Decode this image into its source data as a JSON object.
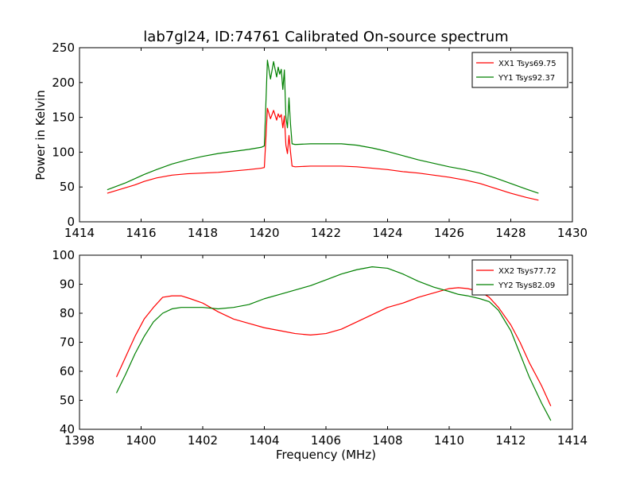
{
  "figure": {
    "title": "lab7gl24, ID:74761 Calibrated On-source spectrum"
  },
  "chart_data": [
    {
      "type": "line",
      "title": "lab7gl24, ID:74761 Calibrated On-source spectrum",
      "xlabel": "",
      "ylabel": "Power in Kelvin",
      "xlim": [
        1414,
        1430
      ],
      "ylim": [
        0,
        250
      ],
      "xticks": [
        1414,
        1416,
        1418,
        1420,
        1422,
        1424,
        1426,
        1428,
        1430
      ],
      "yticks": [
        0,
        50,
        100,
        150,
        200,
        250
      ],
      "grid": false,
      "legend_position": "top-right",
      "series": [
        {
          "name": "XX1 Tsys69.75",
          "color": "#ff0000",
          "x": [
            1414.9,
            1415.2,
            1415.5,
            1415.8,
            1416.1,
            1416.5,
            1417.0,
            1417.5,
            1418.0,
            1418.5,
            1419.0,
            1419.5,
            1419.9,
            1420.0,
            1420.05,
            1420.1,
            1420.2,
            1420.3,
            1420.4,
            1420.45,
            1420.5,
            1420.55,
            1420.6,
            1420.65,
            1420.7,
            1420.75,
            1420.8,
            1420.85,
            1420.9,
            1421.0,
            1421.5,
            1422.0,
            1422.5,
            1423.0,
            1423.5,
            1424.0,
            1424.5,
            1425.0,
            1425.5,
            1426.0,
            1426.5,
            1427.0,
            1427.5,
            1428.0,
            1428.5,
            1428.9
          ],
          "y": [
            41,
            45,
            49,
            53,
            58,
            63,
            67,
            69,
            70,
            71,
            73,
            75,
            77,
            78,
            120,
            163,
            148,
            160,
            146,
            155,
            150,
            154,
            135,
            152,
            110,
            98,
            124,
            100,
            80,
            79,
            80,
            80,
            80,
            79,
            77,
            75,
            72,
            70,
            67,
            64,
            60,
            55,
            48,
            41,
            35,
            31
          ]
        },
        {
          "name": "YY1 Tsys92.37",
          "color": "#008000",
          "x": [
            1414.9,
            1415.2,
            1415.5,
            1415.8,
            1416.1,
            1416.5,
            1417.0,
            1417.5,
            1418.0,
            1418.5,
            1419.0,
            1419.5,
            1419.9,
            1420.0,
            1420.05,
            1420.1,
            1420.2,
            1420.3,
            1420.4,
            1420.45,
            1420.5,
            1420.55,
            1420.6,
            1420.65,
            1420.7,
            1420.75,
            1420.8,
            1420.85,
            1420.9,
            1421.0,
            1421.5,
            1422.0,
            1422.5,
            1423.0,
            1423.5,
            1424.0,
            1424.5,
            1425.0,
            1425.5,
            1426.0,
            1426.5,
            1427.0,
            1427.5,
            1428.0,
            1428.5,
            1428.9
          ],
          "y": [
            46,
            51,
            56,
            62,
            68,
            75,
            83,
            89,
            94,
            98,
            101,
            104,
            107,
            109,
            170,
            232,
            205,
            230,
            208,
            222,
            212,
            219,
            190,
            218,
            150,
            135,
            178,
            140,
            112,
            111,
            112,
            112,
            112,
            110,
            106,
            101,
            95,
            89,
            84,
            79,
            75,
            70,
            63,
            55,
            47,
            41
          ]
        }
      ]
    },
    {
      "type": "line",
      "title": "",
      "xlabel": "Frequency (MHz)",
      "ylabel": "",
      "xlim": [
        1398,
        1414
      ],
      "ylim": [
        40,
        100
      ],
      "xticks": [
        1398,
        1400,
        1402,
        1404,
        1406,
        1408,
        1410,
        1412,
        1414
      ],
      "yticks": [
        40,
        50,
        60,
        70,
        80,
        90,
        100
      ],
      "grid": false,
      "legend_position": "top-right",
      "series": [
        {
          "name": "XX2 Tsys77.72",
          "color": "#ff0000",
          "x": [
            1399.2,
            1399.5,
            1399.8,
            1400.1,
            1400.4,
            1400.7,
            1401.0,
            1401.3,
            1401.6,
            1402.0,
            1402.5,
            1403.0,
            1403.5,
            1404.0,
            1404.5,
            1405.0,
            1405.5,
            1406.0,
            1406.5,
            1407.0,
            1407.5,
            1408.0,
            1408.5,
            1409.0,
            1409.5,
            1410.0,
            1410.3,
            1410.6,
            1411.0,
            1411.3,
            1411.6,
            1412.0,
            1412.3,
            1412.6,
            1413.0,
            1413.3
          ],
          "y": [
            58,
            65,
            72,
            78,
            82,
            85.5,
            86,
            86,
            85,
            83.5,
            80.5,
            78,
            76.5,
            75,
            74,
            73,
            72.5,
            73,
            74.5,
            77,
            79.5,
            82,
            83.5,
            85.5,
            87,
            88.5,
            88.8,
            88.5,
            87.5,
            85.5,
            82,
            76,
            70,
            63,
            55,
            48
          ]
        },
        {
          "name": "YY2 Tsys82.09",
          "color": "#008000",
          "x": [
            1399.2,
            1399.5,
            1399.8,
            1400.1,
            1400.4,
            1400.7,
            1401.0,
            1401.3,
            1401.6,
            1402.0,
            1402.5,
            1403.0,
            1403.5,
            1404.0,
            1404.5,
            1405.0,
            1405.5,
            1406.0,
            1406.5,
            1407.0,
            1407.5,
            1408.0,
            1408.5,
            1409.0,
            1409.5,
            1410.0,
            1410.3,
            1410.6,
            1411.0,
            1411.3,
            1411.6,
            1412.0,
            1412.3,
            1412.6,
            1413.0,
            1413.3
          ],
          "y": [
            52.5,
            59,
            66,
            72,
            77,
            80,
            81.5,
            82,
            82,
            82,
            81.5,
            82,
            83,
            85,
            86.5,
            88,
            89.5,
            91.5,
            93.5,
            95,
            96,
            95.5,
            93.5,
            91,
            89,
            87.5,
            86.5,
            86,
            85,
            84,
            81,
            74,
            66,
            58,
            49,
            43
          ]
        }
      ]
    }
  ]
}
